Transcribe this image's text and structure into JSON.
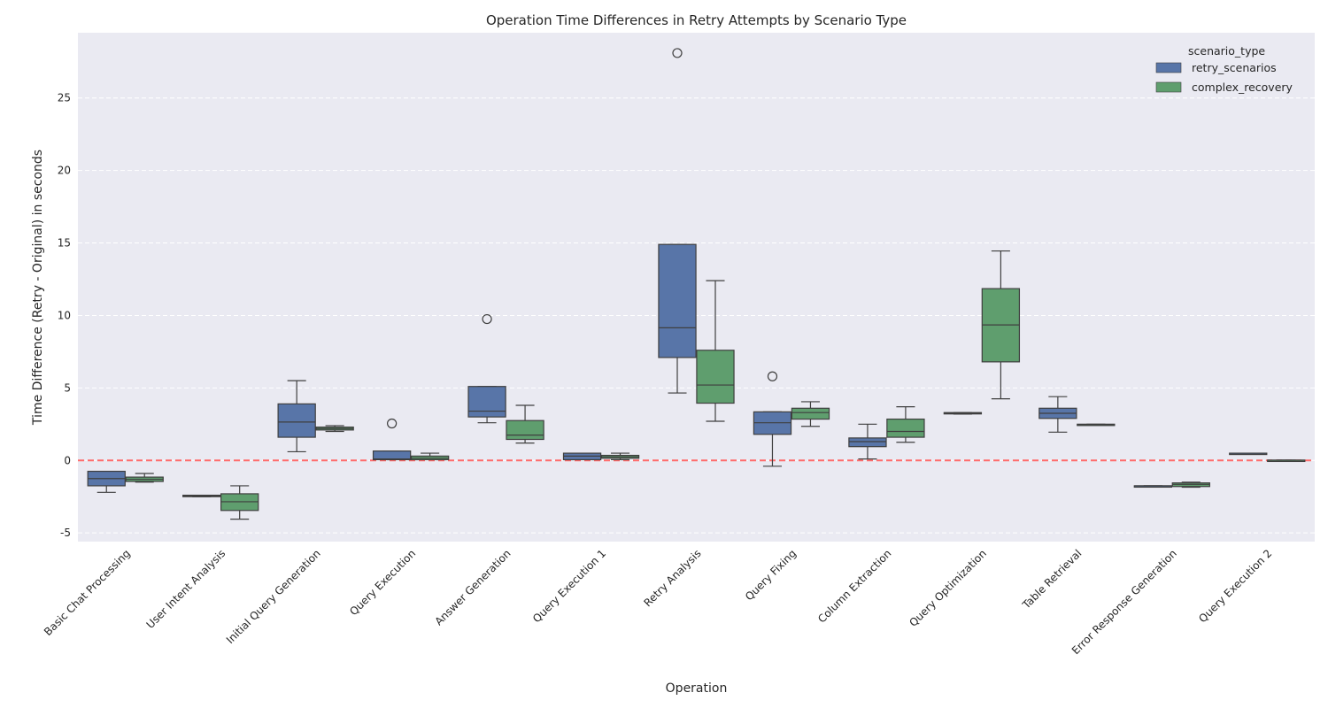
{
  "chart_data": {
    "type": "box",
    "title": "Operation Time Differences in Retry Attempts by Scenario Type",
    "xlabel": "Operation",
    "ylabel": "Time Difference (Retry - Original) in seconds",
    "ylim": [
      -5.6,
      29.5
    ],
    "yticks": [
      -5,
      0,
      5,
      10,
      15,
      20,
      25
    ],
    "reference_line": {
      "y": 0,
      "color": "#ff6b6b",
      "style": "dashed"
    },
    "grid": true,
    "legend": {
      "title": "scenario_type",
      "position": "top-right"
    },
    "categories": [
      "Basic Chat Processing",
      "User Intent Analysis",
      "Initial Query Generation",
      "Query Execution",
      "Answer Generation",
      "Query Execution 1",
      "Retry Analysis",
      "Query Fixing",
      "Column Extraction",
      "Query Optimization",
      "Table Retrieval",
      "Error Response Generation",
      "Query Execution 2"
    ],
    "series": [
      {
        "name": "retry_scenarios",
        "color": "#5875a8",
        "boxes": [
          {
            "category": "Basic Chat Processing",
            "min": -2.2,
            "q1": -1.75,
            "median": -1.25,
            "q3": -0.75,
            "max": -0.75,
            "outliers": []
          },
          {
            "category": "User Intent Analysis",
            "min": -2.5,
            "q1": -2.5,
            "median": -2.45,
            "q3": -2.4,
            "max": -2.4,
            "outliers": []
          },
          {
            "category": "Initial Query Generation",
            "min": 0.6,
            "q1": 1.6,
            "median": 2.65,
            "q3": 3.9,
            "max": 5.5,
            "outliers": []
          },
          {
            "category": "Query Execution",
            "min": 0.05,
            "q1": 0.05,
            "median": 0.1,
            "q3": 0.65,
            "max": 0.65,
            "outliers": [
              2.55
            ]
          },
          {
            "category": "Answer Generation",
            "min": 2.6,
            "q1": 3.0,
            "median": 3.4,
            "q3": 5.1,
            "max": 5.1,
            "outliers": [
              9.75
            ]
          },
          {
            "category": "Query Execution 1",
            "min": 0.05,
            "q1": 0.05,
            "median": 0.3,
            "q3": 0.5,
            "max": 0.5,
            "outliers": []
          },
          {
            "category": "Retry Analysis",
            "min": 4.65,
            "q1": 7.1,
            "median": 9.15,
            "q3": 14.9,
            "max": 14.9,
            "outliers": [
              28.1
            ]
          },
          {
            "category": "Query Fixing",
            "min": -0.4,
            "q1": 1.8,
            "median": 2.6,
            "q3": 3.35,
            "max": 3.35,
            "outliers": [
              5.8
            ]
          },
          {
            "category": "Column Extraction",
            "min": 0.1,
            "q1": 0.95,
            "median": 1.3,
            "q3": 1.55,
            "max": 2.5,
            "outliers": []
          },
          {
            "category": "Query Optimization",
            "min": 3.2,
            "q1": 3.22,
            "median": 3.25,
            "q3": 3.3,
            "max": 3.3,
            "outliers": []
          },
          {
            "category": "Table Retrieval",
            "min": 1.95,
            "q1": 2.9,
            "median": 3.25,
            "q3": 3.6,
            "max": 4.4,
            "outliers": []
          },
          {
            "category": "Error Response Generation",
            "min": -1.75,
            "q1": -1.75,
            "median": -1.75,
            "q3": -1.75,
            "max": -1.75,
            "outliers": []
          },
          {
            "category": "Query Execution 2",
            "min": 0.5,
            "q1": 0.5,
            "median": 0.5,
            "q3": 0.5,
            "max": 0.5,
            "outliers": []
          }
        ]
      },
      {
        "name": "complex_recovery",
        "color": "#5f9e6e",
        "boxes": [
          {
            "category": "Basic Chat Processing",
            "min": -1.5,
            "q1": -1.45,
            "median": -1.3,
            "q3": -1.15,
            "max": -0.9,
            "outliers": []
          },
          {
            "category": "User Intent Analysis",
            "min": -4.05,
            "q1": -3.45,
            "median": -2.85,
            "q3": -2.3,
            "max": -1.75,
            "outliers": []
          },
          {
            "category": "Initial Query Generation",
            "min": 2.0,
            "q1": 2.1,
            "median": 2.2,
            "q3": 2.3,
            "max": 2.4,
            "outliers": []
          },
          {
            "category": "Query Execution",
            "min": 0.05,
            "q1": 0.05,
            "median": 0.15,
            "q3": 0.3,
            "max": 0.5,
            "outliers": []
          },
          {
            "category": "Answer Generation",
            "min": 1.2,
            "q1": 1.45,
            "median": 1.75,
            "q3": 2.75,
            "max": 3.8,
            "outliers": []
          },
          {
            "category": "Query Execution 1",
            "min": 0.05,
            "q1": 0.15,
            "median": 0.25,
            "q3": 0.35,
            "max": 0.5,
            "outliers": []
          },
          {
            "category": "Retry Analysis",
            "min": 2.7,
            "q1": 3.95,
            "median": 5.2,
            "q3": 7.6,
            "max": 12.4,
            "outliers": []
          },
          {
            "category": "Query Fixing",
            "min": 2.35,
            "q1": 2.85,
            "median": 3.3,
            "q3": 3.6,
            "max": 4.05,
            "outliers": []
          },
          {
            "category": "Column Extraction",
            "min": 1.25,
            "q1": 1.6,
            "median": 2.0,
            "q3": 2.85,
            "max": 3.7,
            "outliers": []
          },
          {
            "category": "Query Optimization",
            "min": 4.25,
            "q1": 6.8,
            "median": 9.35,
            "q3": 11.85,
            "max": 14.45,
            "outliers": []
          },
          {
            "category": "Table Retrieval",
            "min": 2.45,
            "q1": 2.45,
            "median": 2.48,
            "q3": 2.5,
            "max": 2.5,
            "outliers": []
          },
          {
            "category": "Error Response Generation",
            "min": -1.85,
            "q1": -1.8,
            "median": -1.65,
            "q3": -1.55,
            "max": -1.5,
            "outliers": []
          },
          {
            "category": "Query Execution 2",
            "min": 0.02,
            "q1": 0.02,
            "median": 0.02,
            "q3": 0.02,
            "max": 0.02,
            "outliers": []
          }
        ]
      }
    ]
  }
}
